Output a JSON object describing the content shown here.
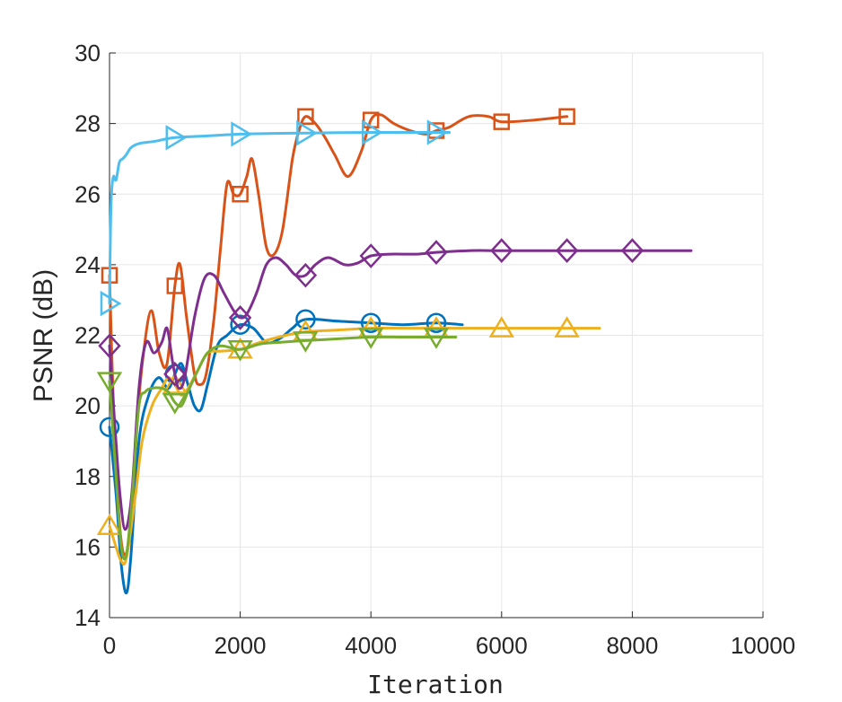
{
  "chart_data": {
    "type": "line",
    "title": "",
    "xlabel": "Iteration",
    "ylabel": "PSNR (dB)",
    "xlim": [
      0,
      10000
    ],
    "ylim": [
      14,
      30
    ],
    "xticks": [
      0,
      2000,
      4000,
      6000,
      8000,
      10000
    ],
    "yticks": [
      14,
      16,
      18,
      20,
      22,
      24,
      26,
      28,
      30
    ],
    "grid": true,
    "legend": "none",
    "series": [
      {
        "color": "#0072BD",
        "marker": "circle",
        "points": [
          [
            0,
            19.4
          ],
          [
            100,
            17.5
          ],
          [
            180,
            15.5
          ],
          [
            260,
            14.7
          ],
          [
            330,
            15.8
          ],
          [
            450,
            19.0
          ],
          [
            600,
            20.3
          ],
          [
            750,
            20.8
          ],
          [
            900,
            20.5
          ],
          [
            1000,
            20.9
          ],
          [
            1100,
            21.2
          ],
          [
            1200,
            20.6
          ],
          [
            1300,
            20.0
          ],
          [
            1400,
            19.9
          ],
          [
            1500,
            20.6
          ],
          [
            1650,
            21.7
          ],
          [
            1800,
            22.0
          ],
          [
            2000,
            22.3
          ],
          [
            2200,
            22.2
          ],
          [
            2400,
            21.8
          ],
          [
            2600,
            21.9
          ],
          [
            2800,
            22.2
          ],
          [
            3000,
            22.45
          ],
          [
            3500,
            22.4
          ],
          [
            4000,
            22.35
          ],
          [
            4500,
            22.3
          ],
          [
            5000,
            22.35
          ],
          [
            5400,
            22.3
          ]
        ],
        "markers_x": [
          0,
          1000,
          2000,
          3000,
          4000,
          5000
        ]
      },
      {
        "color": "#D95319",
        "marker": "square",
        "points": [
          [
            0,
            23.7
          ],
          [
            60,
            20.0
          ],
          [
            140,
            17.0
          ],
          [
            220,
            15.8
          ],
          [
            320,
            16.5
          ],
          [
            420,
            19.5
          ],
          [
            520,
            21.5
          ],
          [
            640,
            22.7
          ],
          [
            760,
            21.5
          ],
          [
            880,
            21.2
          ],
          [
            1000,
            23.4
          ],
          [
            1080,
            24.0
          ],
          [
            1180,
            22.5
          ],
          [
            1300,
            20.9
          ],
          [
            1380,
            20.6
          ],
          [
            1480,
            20.9
          ],
          [
            1600,
            22.5
          ],
          [
            1700,
            24.5
          ],
          [
            1800,
            26.3
          ],
          [
            1900,
            26.0
          ],
          [
            2000,
            26.0
          ],
          [
            2100,
            26.5
          ],
          [
            2180,
            27.0
          ],
          [
            2280,
            26.0
          ],
          [
            2400,
            24.5
          ],
          [
            2520,
            24.3
          ],
          [
            2650,
            25.0
          ],
          [
            2800,
            27.0
          ],
          [
            2900,
            27.8
          ],
          [
            3000,
            28.2
          ],
          [
            3150,
            28.0
          ],
          [
            3300,
            27.6
          ],
          [
            3450,
            27.1
          ],
          [
            3650,
            26.5
          ],
          [
            3850,
            27.2
          ],
          [
            4000,
            28.1
          ],
          [
            4150,
            28.25
          ],
          [
            4350,
            28.0
          ],
          [
            4600,
            27.8
          ],
          [
            4850,
            27.7
          ],
          [
            5000,
            27.8
          ],
          [
            5200,
            27.9
          ],
          [
            5500,
            28.2
          ],
          [
            5800,
            28.2
          ],
          [
            6000,
            28.05
          ],
          [
            6500,
            28.1
          ],
          [
            7000,
            28.2
          ]
        ],
        "markers_x": [
          0,
          1000,
          2000,
          3000,
          4000,
          5000,
          6000,
          7000
        ]
      },
      {
        "color": "#EDB120",
        "marker": "triangle-up",
        "points": [
          [
            0,
            16.6
          ],
          [
            100,
            16.0
          ],
          [
            180,
            15.6
          ],
          [
            260,
            15.7
          ],
          [
            400,
            17.5
          ],
          [
            500,
            19.0
          ],
          [
            650,
            20.0
          ],
          [
            800,
            20.5
          ],
          [
            900,
            20.8
          ],
          [
            1000,
            20.6
          ],
          [
            1100,
            20.3
          ],
          [
            1200,
            20.5
          ],
          [
            1350,
            21.0
          ],
          [
            1500,
            21.5
          ],
          [
            1700,
            21.55
          ],
          [
            2000,
            21.6
          ],
          [
            2300,
            21.8
          ],
          [
            2700,
            22.0
          ],
          [
            3000,
            22.1
          ],
          [
            3500,
            22.15
          ],
          [
            4000,
            22.2
          ],
          [
            4500,
            22.2
          ],
          [
            5000,
            22.2
          ],
          [
            6000,
            22.2
          ],
          [
            7000,
            22.2
          ],
          [
            7500,
            22.2
          ]
        ],
        "markers_x": [
          0,
          1000,
          2000,
          3000,
          4000,
          5000,
          6000,
          7000
        ]
      },
      {
        "color": "#7E2F8E",
        "marker": "diamond",
        "points": [
          [
            0,
            21.7
          ],
          [
            80,
            19.5
          ],
          [
            160,
            17.5
          ],
          [
            240,
            16.5
          ],
          [
            340,
            17.5
          ],
          [
            450,
            20.5
          ],
          [
            560,
            21.8
          ],
          [
            680,
            21.5
          ],
          [
            800,
            21.8
          ],
          [
            880,
            22.2
          ],
          [
            960,
            21.3
          ],
          [
            1000,
            20.9
          ],
          [
            1060,
            20.5
          ],
          [
            1150,
            20.8
          ],
          [
            1300,
            22.5
          ],
          [
            1450,
            23.6
          ],
          [
            1600,
            23.7
          ],
          [
            1750,
            23.2
          ],
          [
            1900,
            22.7
          ],
          [
            2000,
            22.5
          ],
          [
            2100,
            22.6
          ],
          [
            2250,
            23.2
          ],
          [
            2400,
            24.0
          ],
          [
            2550,
            24.2
          ],
          [
            2700,
            24.0
          ],
          [
            2850,
            23.7
          ],
          [
            3000,
            23.7
          ],
          [
            3150,
            24.0
          ],
          [
            3350,
            24.2
          ],
          [
            3600,
            24.0
          ],
          [
            3800,
            24.05
          ],
          [
            4000,
            24.25
          ],
          [
            4300,
            24.3
          ],
          [
            4700,
            24.3
          ],
          [
            5000,
            24.35
          ],
          [
            5500,
            24.4
          ],
          [
            6000,
            24.4
          ],
          [
            7000,
            24.4
          ],
          [
            8000,
            24.4
          ],
          [
            8900,
            24.4
          ]
        ],
        "markers_x": [
          0,
          1000,
          2000,
          3000,
          4000,
          5000,
          6000,
          7000,
          8000
        ]
      },
      {
        "color": "#77AC30",
        "marker": "triangle-down",
        "points": [
          [
            0,
            20.7
          ],
          [
            100,
            18.0
          ],
          [
            180,
            16.0
          ],
          [
            260,
            15.8
          ],
          [
            350,
            17.5
          ],
          [
            450,
            20.0
          ],
          [
            550,
            20.4
          ],
          [
            650,
            20.5
          ],
          [
            800,
            20.5
          ],
          [
            900,
            20.4
          ],
          [
            1000,
            20.1
          ],
          [
            1100,
            20.0
          ],
          [
            1200,
            20.4
          ],
          [
            1350,
            21.0
          ],
          [
            1500,
            21.5
          ],
          [
            1700,
            21.7
          ],
          [
            2000,
            21.6
          ],
          [
            2300,
            21.75
          ],
          [
            2600,
            21.8
          ],
          [
            3000,
            21.85
          ],
          [
            3500,
            21.9
          ],
          [
            4000,
            21.95
          ],
          [
            4500,
            21.95
          ],
          [
            5000,
            21.95
          ],
          [
            5300,
            21.95
          ]
        ],
        "markers_x": [
          0,
          1000,
          2000,
          3000,
          4000,
          5000
        ]
      },
      {
        "color": "#4DBEEE",
        "marker": "triangle-right",
        "points": [
          [
            0,
            22.9
          ],
          [
            15,
            25.0
          ],
          [
            30,
            26.0
          ],
          [
            60,
            26.5
          ],
          [
            100,
            26.4
          ],
          [
            150,
            26.9
          ],
          [
            200,
            27.0
          ],
          [
            250,
            27.1
          ],
          [
            320,
            27.3
          ],
          [
            400,
            27.4
          ],
          [
            500,
            27.45
          ],
          [
            700,
            27.5
          ],
          [
            1000,
            27.6
          ],
          [
            1500,
            27.65
          ],
          [
            2000,
            27.7
          ],
          [
            2500,
            27.72
          ],
          [
            3000,
            27.73
          ],
          [
            3500,
            27.74
          ],
          [
            4000,
            27.75
          ],
          [
            4500,
            27.75
          ],
          [
            5000,
            27.75
          ],
          [
            5200,
            27.75
          ]
        ],
        "markers_x": [
          0,
          1000,
          2000,
          3000,
          4000,
          5000
        ]
      }
    ]
  }
}
